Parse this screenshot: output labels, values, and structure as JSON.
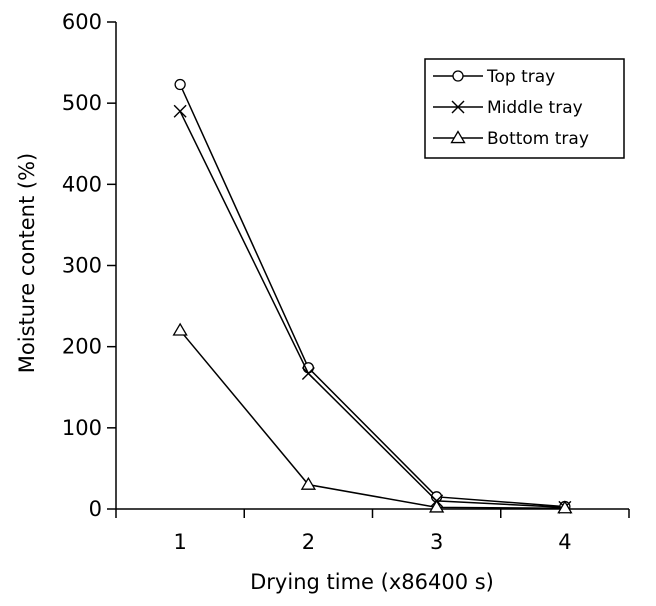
{
  "chart_data": {
    "type": "line",
    "xlabel": "Drying time (x86400 s)",
    "ylabel": "Moisture content (%)",
    "x": [
      1,
      2,
      3,
      4
    ],
    "xlim": [
      0.5,
      4.5
    ],
    "ylim": [
      0,
      600
    ],
    "xticks": [
      "1",
      "2",
      "3",
      "4"
    ],
    "yticks": [
      "0",
      "100",
      "200",
      "300",
      "400",
      "500",
      "600"
    ],
    "grid": false,
    "legend_position": "top-right",
    "series": [
      {
        "name": "Top tray",
        "marker": "circle",
        "values": [
          523,
          174,
          15,
          3
        ]
      },
      {
        "name": "Middle tray",
        "marker": "cross",
        "values": [
          490,
          167,
          10,
          2
        ]
      },
      {
        "name": "Bottom tray",
        "marker": "triangle",
        "values": [
          220,
          30,
          2,
          1
        ]
      }
    ]
  }
}
